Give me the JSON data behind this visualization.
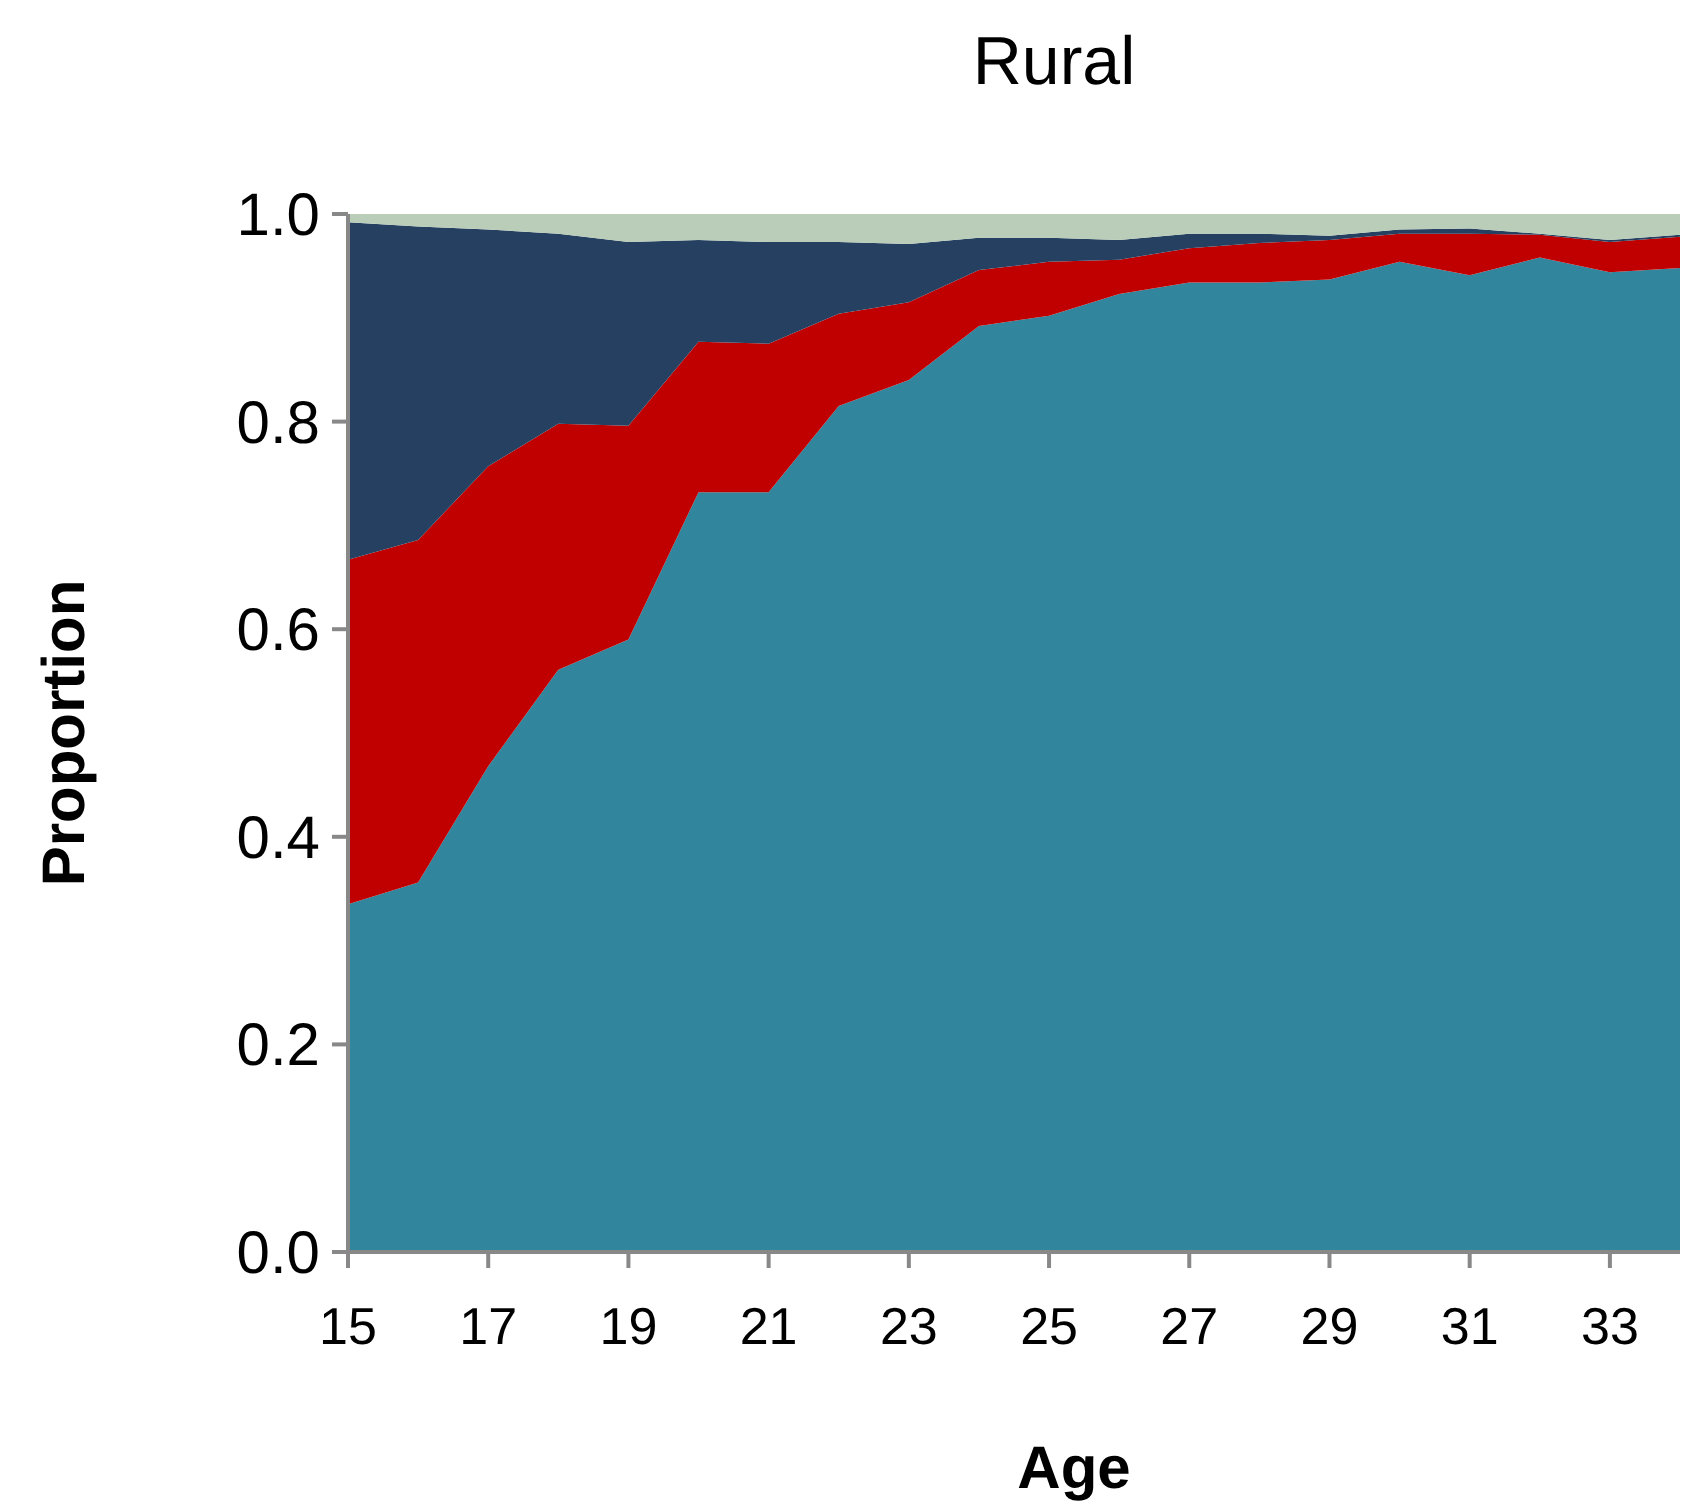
{
  "chart_data": {
    "type": "area",
    "stacked": true,
    "title": "Rural",
    "xlabel": "Age",
    "ylabel": "Proportion",
    "x": [
      15,
      16,
      17,
      18,
      19,
      20,
      21,
      22,
      23,
      24,
      25,
      26,
      27,
      28,
      29,
      30,
      31,
      32,
      33,
      34
    ],
    "xlim": [
      15,
      34
    ],
    "xticks": [
      15,
      17,
      19,
      21,
      23,
      25,
      27,
      29,
      31,
      33
    ],
    "ylim": [
      0,
      1
    ],
    "yticks": [
      {
        "value": 0,
        "label": "0.0"
      },
      {
        "value": 0.2,
        "label": "0.2"
      },
      {
        "value": 0.4,
        "label": "0.4"
      },
      {
        "value": 0.6,
        "label": "0.6"
      },
      {
        "value": 0.8,
        "label": "0.8"
      },
      {
        "value": 1,
        "label": "1.0"
      }
    ],
    "series": [
      {
        "color": "#31859c",
        "values": [
          0.335,
          0.356,
          0.468,
          0.561,
          0.59,
          0.732,
          0.732,
          0.815,
          0.84,
          0.892,
          0.902,
          0.923,
          0.934,
          0.934,
          0.937,
          0.954,
          0.941,
          0.958,
          0.944,
          0.948
        ]
      },
      {
        "color": "#c00000",
        "values": [
          0.332,
          0.33,
          0.289,
          0.237,
          0.206,
          0.145,
          0.143,
          0.089,
          0.075,
          0.054,
          0.052,
          0.033,
          0.033,
          0.038,
          0.038,
          0.027,
          0.04,
          0.022,
          0.029,
          0.03
        ]
      },
      {
        "color": "#254061",
        "values": [
          0.325,
          0.302,
          0.228,
          0.183,
          0.177,
          0.098,
          0.098,
          0.069,
          0.056,
          0.031,
          0.023,
          0.019,
          0.014,
          0.009,
          0.004,
          0.004,
          0.005,
          0.001,
          0.002,
          0.002
        ]
      },
      {
        "color": "#b9cdb8",
        "values": [
          0.008,
          0.012,
          0.015,
          0.019,
          0.027,
          0.025,
          0.027,
          0.027,
          0.029,
          0.023,
          0.023,
          0.025,
          0.019,
          0.019,
          0.021,
          0.015,
          0.014,
          0.019,
          0.025,
          0.02
        ]
      }
    ]
  }
}
